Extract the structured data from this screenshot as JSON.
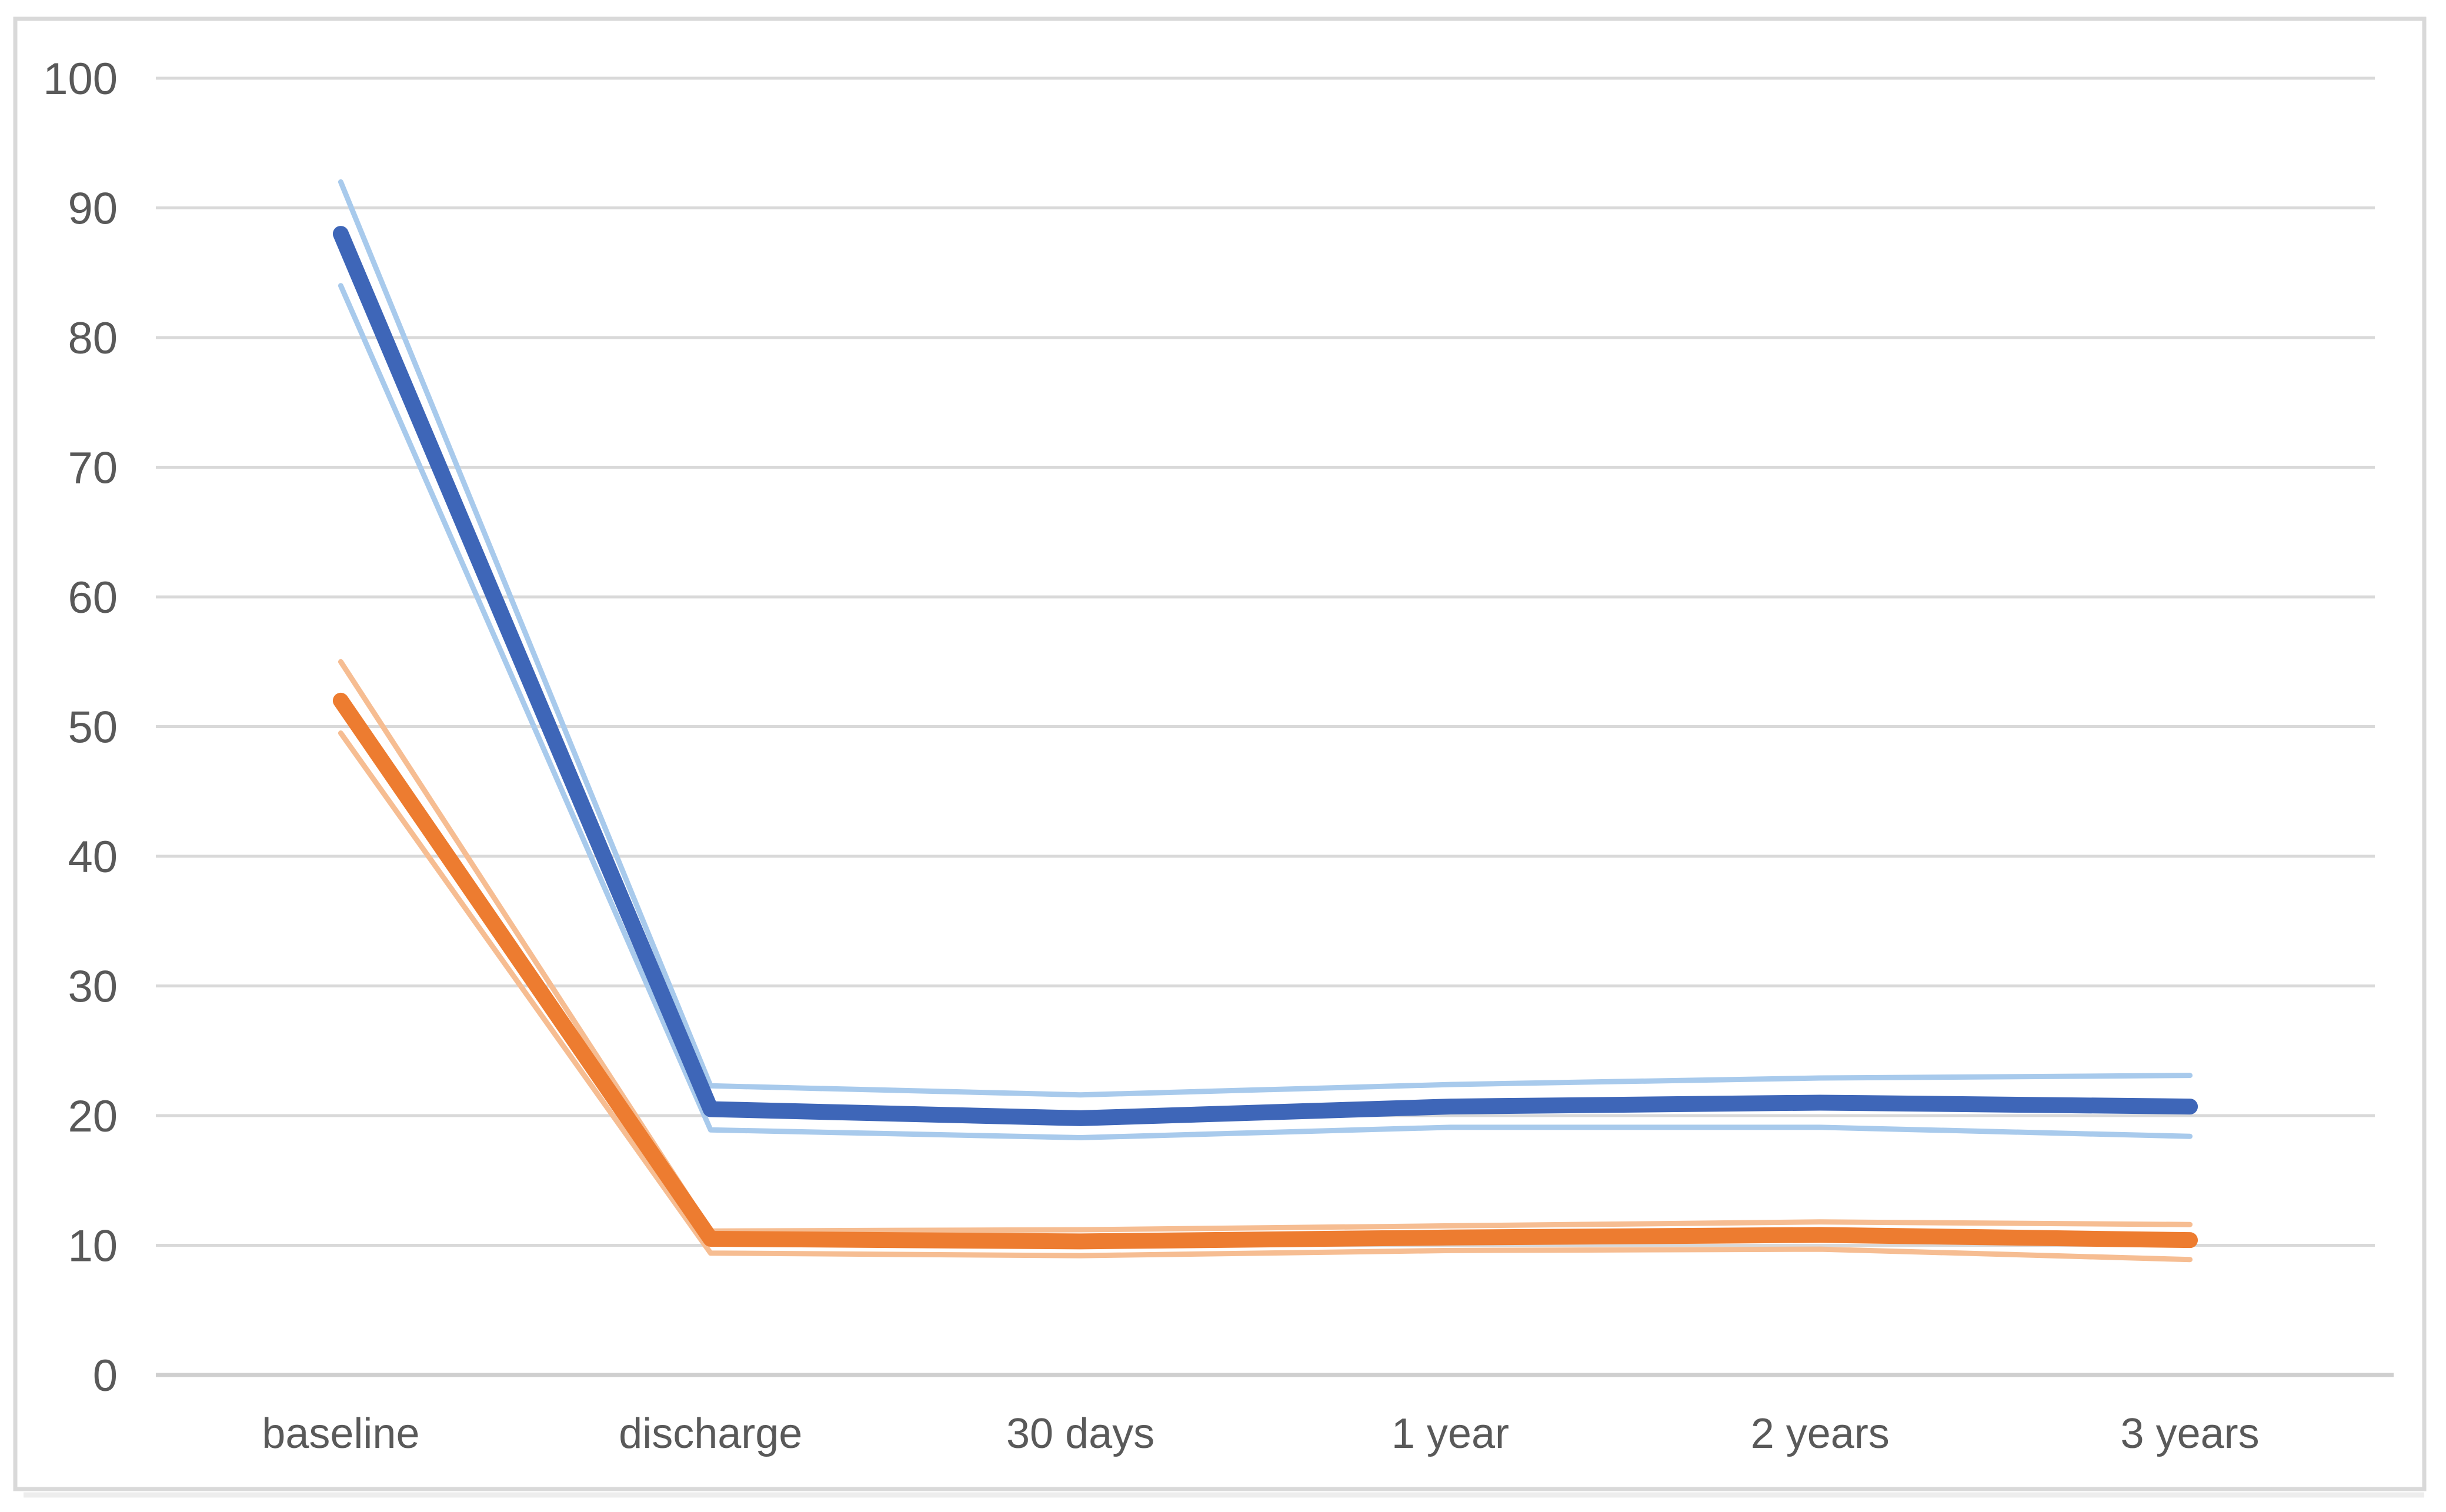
{
  "chart": {
    "style": {
      "background": "#FFFFFF",
      "frame_border": "#D9D9D9",
      "frame_shadow": "#EDEDED",
      "gridline": "#D9D9D9",
      "axis_line": "#CFCFCF",
      "tick_label_color": "#595959"
    }
  },
  "chart_data": {
    "type": "line",
    "title": "",
    "xlabel": "",
    "ylabel": "",
    "legend": "none",
    "grid": true,
    "ylim": [
      0,
      100
    ],
    "ytick_step": 10,
    "yticks": [
      100,
      90,
      80,
      70,
      60,
      50,
      40,
      30,
      20,
      10,
      0
    ],
    "categories": [
      "baseline",
      "discharge",
      "30 days",
      "1 year",
      "2 years",
      "3 years"
    ],
    "series": [
      {
        "name": "blue-upper-ci",
        "role": "confidence-upper",
        "color": "#A8CAEC",
        "width": 9,
        "values": [
          92,
          22.3,
          21.6,
          22.4,
          22.9,
          23.1
        ]
      },
      {
        "name": "blue-lower-ci",
        "role": "confidence-lower",
        "color": "#A8CAEC",
        "width": 9,
        "values": [
          84,
          18.9,
          18.3,
          19.1,
          19.1,
          18.4
        ]
      },
      {
        "name": "orange-upper-ci",
        "role": "confidence-upper",
        "color": "#F6BD92",
        "width": 9,
        "values": [
          55,
          11.1,
          11.2,
          11.5,
          11.8,
          11.6
        ]
      },
      {
        "name": "orange-lower-ci",
        "role": "confidence-lower",
        "color": "#F6BD92",
        "width": 9,
        "values": [
          49.5,
          9.4,
          9.2,
          9.6,
          9.7,
          8.9
        ]
      },
      {
        "name": "blue-main",
        "role": "mean",
        "color": "#3E66B8",
        "width": 27,
        "values": [
          88,
          20.5,
          19.8,
          20.7,
          21.0,
          20.7
        ]
      },
      {
        "name": "orange-main",
        "role": "mean",
        "color": "#ED7C30",
        "width": 27,
        "values": [
          52,
          10.5,
          10.3,
          10.6,
          10.8,
          10.4
        ]
      }
    ]
  }
}
